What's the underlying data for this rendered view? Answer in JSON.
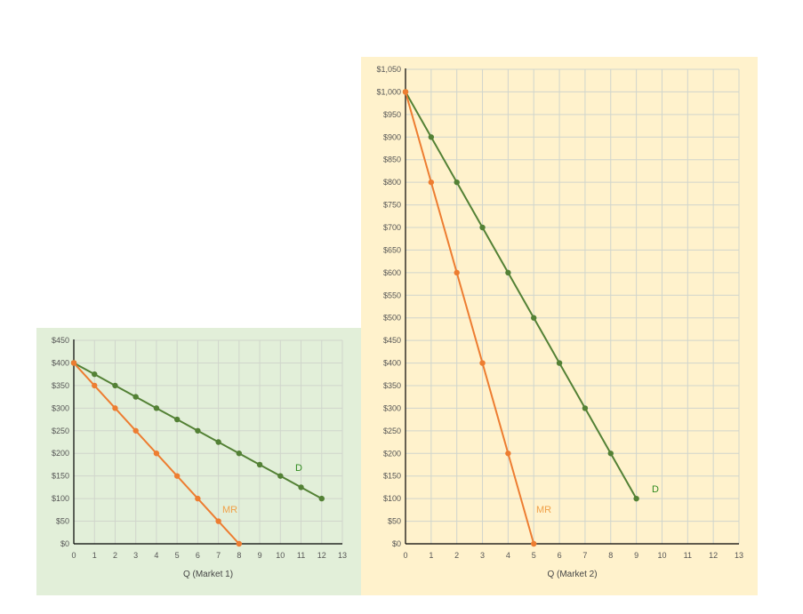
{
  "chart_data": [
    {
      "type": "line",
      "xlabel": "Q (Market 1)",
      "ylabel": "",
      "xlim": [
        0,
        13
      ],
      "ylim": [
        0,
        450
      ],
      "x_ticks": [
        "0",
        "1",
        "2",
        "3",
        "4",
        "5",
        "6",
        "7",
        "8",
        "9",
        "10",
        "11",
        "12",
        "13"
      ],
      "y_ticks": [
        "$0",
        "$50",
        "$100",
        "$150",
        "$200",
        "$250",
        "$300",
        "$350",
        "$400",
        "$450"
      ],
      "grid": true,
      "background": "#e2efd9",
      "series": [
        {
          "name": "D",
          "color": "#538135",
          "x": [
            0,
            1,
            2,
            3,
            4,
            5,
            6,
            7,
            8,
            9,
            10,
            11,
            12
          ],
          "y": [
            400,
            375,
            350,
            325,
            300,
            275,
            250,
            225,
            200,
            175,
            150,
            125,
            100
          ]
        },
        {
          "name": "MR",
          "color": "#ed7d31",
          "x": [
            0,
            1,
            2,
            3,
            4,
            5,
            6,
            7,
            8
          ],
          "y": [
            400,
            350,
            300,
            250,
            200,
            150,
            100,
            50,
            0
          ]
        }
      ]
    },
    {
      "type": "line",
      "xlabel": "Q (Market 2)",
      "ylabel": "",
      "xlim": [
        0,
        13
      ],
      "ylim": [
        0,
        1050
      ],
      "x_ticks": [
        "0",
        "1",
        "2",
        "3",
        "4",
        "5",
        "6",
        "7",
        "8",
        "9",
        "10",
        "11",
        "12",
        "13"
      ],
      "y_ticks": [
        "$0",
        "$50",
        "$100",
        "$150",
        "$200",
        "$250",
        "$300",
        "$350",
        "$400",
        "$450",
        "$500",
        "$550",
        "$600",
        "$650",
        "$700",
        "$750",
        "$800",
        "$850",
        "$900",
        "$950",
        "$1,000",
        "$1,050"
      ],
      "grid": true,
      "background": "#fff2cc",
      "series": [
        {
          "name": "D",
          "color": "#538135",
          "x": [
            0,
            1,
            2,
            3,
            4,
            5,
            6,
            7,
            8,
            9
          ],
          "y": [
            1000,
            900,
            800,
            700,
            600,
            500,
            400,
            300,
            200,
            100
          ]
        },
        {
          "name": "MR",
          "color": "#ed7d31",
          "x": [
            0,
            1,
            2,
            3,
            4,
            5
          ],
          "y": [
            1000,
            800,
            600,
            400,
            200,
            0
          ]
        }
      ]
    }
  ]
}
